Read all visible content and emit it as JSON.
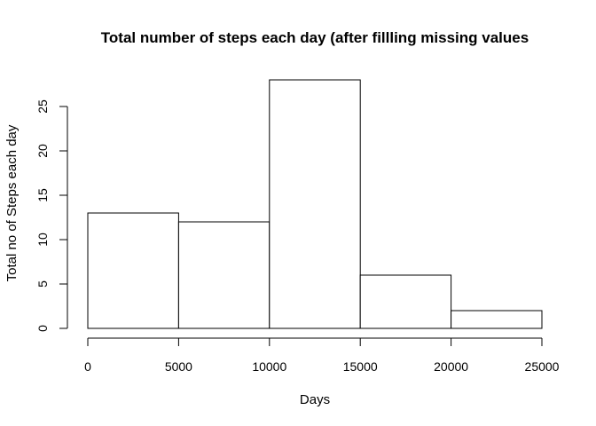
{
  "chart_data": {
    "type": "bar",
    "title": "Total number of steps each day (after fillling missing values",
    "xlabel": "Days",
    "ylabel": "Total no of Steps each day",
    "bins": [
      {
        "from": 0,
        "to": 5000,
        "count": 13
      },
      {
        "from": 5000,
        "to": 10000,
        "count": 12
      },
      {
        "from": 10000,
        "to": 15000,
        "count": 28
      },
      {
        "from": 15000,
        "to": 20000,
        "count": 6
      },
      {
        "from": 20000,
        "to": 25000,
        "count": 2
      }
    ],
    "x_ticks": [
      0,
      5000,
      10000,
      15000,
      20000,
      25000
    ],
    "y_ticks": [
      0,
      5,
      10,
      15,
      20,
      25
    ],
    "xlim": [
      0,
      25000
    ],
    "ylim": [
      0,
      28
    ],
    "grid": false,
    "legend": "none",
    "bar_fill": "#ffffff",
    "bar_stroke": "#000000"
  }
}
